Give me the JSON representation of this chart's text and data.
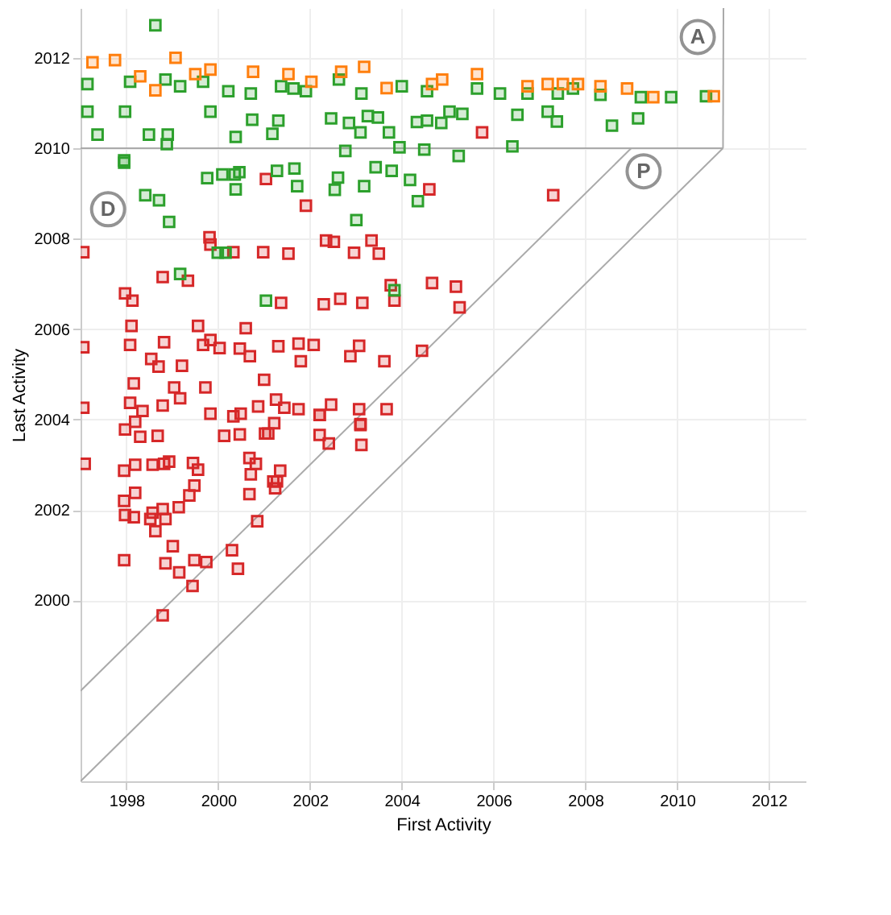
{
  "chart_data": {
    "type": "scatter",
    "xlabel": "First Activity",
    "ylabel": "Last Activity",
    "xlim": [
      1997,
      2012.8
    ],
    "ylim": [
      1996,
      2013.1
    ],
    "xticks": [
      1998,
      2000,
      2002,
      2004,
      2006,
      2008,
      2010,
      2012
    ],
    "yticks": [
      2000,
      2002,
      2004,
      2006,
      2008,
      2010,
      2012
    ],
    "grid": true,
    "marker": "square",
    "annotations": [
      {
        "text": "A",
        "x": 2010.45,
        "y": 2012.46
      },
      {
        "text": "P",
        "x": 2009.27,
        "y": 2009.49
      },
      {
        "text": "D",
        "x": 1997.6,
        "y": 2008.65
      }
    ],
    "series": [
      {
        "type": "line",
        "color": "#aaaaaa",
        "marker": "none",
        "line_style": "solid",
        "x": [
          1997,
          2009
        ],
        "values": [
          1998,
          2010
        ]
      },
      {
        "type": "line",
        "color": "#aaaaaa",
        "marker": "none",
        "line_style": "solid",
        "x": [
          1997,
          2011
        ],
        "values": [
          1996,
          2010
        ]
      },
      {
        "type": "line",
        "color": "#aaaaaa",
        "marker": "none",
        "line_style": "solid",
        "x": [
          1997,
          2011
        ],
        "values": [
          2010,
          2010
        ]
      },
      {
        "type": "line",
        "color": "#aaaaaa",
        "marker": "none",
        "line_style": "solid",
        "x": [
          2011,
          2011.01
        ],
        "values": [
          2010,
          2013.1
        ]
      },
      {
        "color": "#d62728",
        "x": [
          1997.06,
          1999.83,
          2000.33,
          2000.98,
          2001.53,
          2002.35,
          2002.52,
          2002.96,
          2003.34,
          2003.5,
          2004.6,
          2001.91,
          2001.04,
          1998.79,
          1999.34,
          1997.97,
          1998.13,
          1998.11,
          1998.08,
          1997.06,
          1998.82,
          1999.56,
          1999.67,
          1999.83,
          2000.03,
          2000.47,
          2000.6,
          2000.69,
          2001.31,
          2001.75,
          2002.08,
          2001.37,
          2002.3,
          2002.66,
          2003.14,
          2003.76,
          2003.84,
          2004.66,
          2005.18,
          2005.26,
          2004.44,
          2003.07,
          2002.88,
          2003.62,
          2001.8,
          1998.54,
          1998.7,
          1999.21,
          1998.16,
          1999.04,
          1999.17,
          1999.72,
          2001.0,
          1997.06,
          1998.08,
          1998.79,
          1998.35,
          1999.83,
          2000.33,
          2000.49,
          2000.87,
          2001.26,
          2001.44,
          2001.75,
          2002.21,
          2002.46,
          2003.07,
          2003.1,
          2003.67,
          2001.22,
          2001.02,
          1997.97,
          1998.3,
          1998.68,
          1998.19,
          1997.09,
          1997.95,
          1998.19,
          1998.57,
          1998.82,
          1998.93,
          1999.45,
          1999.56,
          1999.48,
          1999.37,
          1998.19,
          1997.95,
          1997.97,
          1998.16,
          1998.57,
          1998.52,
          1998.79,
          1998.85,
          1999.14,
          1998.63,
          1999.01,
          1997.95,
          1998.85,
          1999.15,
          1999.48,
          1999.74,
          1999.44,
          1998.79,
          2000.3,
          2000.43,
          2000.85,
          2000.13,
          2000.47,
          2001.09,
          2000.68,
          2000.82,
          2000.71,
          2001.35,
          2001.2,
          2001.28,
          2001.24,
          2000.68,
          2002.21,
          2002.41,
          2003.1,
          2003.12,
          2002.21,
          2007.3,
          2005.75,
          1999.81
        ],
        "values": [
          2007.7,
          2007.87,
          2007.7,
          2007.7,
          2007.67,
          2007.96,
          2007.93,
          2007.69,
          2007.96,
          2007.67,
          2009.09,
          2008.73,
          2009.32,
          2007.15,
          2007.07,
          2006.79,
          2006.63,
          2006.07,
          2005.65,
          2005.6,
          2005.71,
          2006.07,
          2005.65,
          2005.76,
          2005.58,
          2005.57,
          2006.02,
          2005.4,
          2005.62,
          2005.68,
          2005.65,
          2006.58,
          2006.55,
          2006.67,
          2006.58,
          2006.97,
          2006.63,
          2007.02,
          2006.94,
          2006.48,
          2005.52,
          2005.63,
          2005.4,
          2005.29,
          2005.29,
          2005.34,
          2005.17,
          2005.19,
          2004.8,
          2004.71,
          2004.47,
          2004.71,
          2004.88,
          2004.26,
          2004.37,
          2004.31,
          2004.19,
          2004.13,
          2004.07,
          2004.13,
          2004.29,
          2004.44,
          2004.26,
          2004.23,
          2004.1,
          2004.33,
          2004.23,
          2003.9,
          2004.23,
          2003.92,
          2003.69,
          2003.78,
          2003.62,
          2003.64,
          2003.95,
          2003.02,
          2002.87,
          2003.0,
          2003.0,
          2003.02,
          2003.07,
          2003.04,
          2002.89,
          2002.54,
          2002.32,
          2002.38,
          2002.2,
          2001.89,
          2001.84,
          2001.94,
          2001.8,
          2002.02,
          2001.8,
          2002.06,
          2001.53,
          2001.2,
          2000.89,
          2000.82,
          2000.62,
          2000.89,
          2000.85,
          2000.32,
          1999.67,
          2001.11,
          2000.7,
          2001.75,
          2003.64,
          2003.67,
          2003.69,
          2003.15,
          2003.02,
          2002.79,
          2002.87,
          2002.63,
          2002.63,
          2002.48,
          2002.35,
          2003.66,
          2003.47,
          2003.88,
          2003.44,
          2004.1,
          2008.96,
          2010.35,
          2008.03
        ]
      },
      {
        "color": "#2ca02c",
        "x": [
          1997.95,
          1999.76,
          2000.09,
          2000.36,
          2000.46,
          2000.38,
          2001.28,
          2001.66,
          2001.72,
          2002.61,
          2002.54,
          2003.18,
          2003.43,
          2003.78,
          2004.18,
          2004.35,
          1998.41,
          1998.71,
          1998.93,
          2003.01,
          1999.99,
          2000.16,
          1999.17,
          2001.04,
          2003.84,
          1997.37,
          1997.97,
          1998.49,
          1998.9,
          1998.88,
          1997.95,
          1999.83,
          2000.38,
          2000.74,
          2001.31,
          2001.18,
          2002.46,
          2002.85,
          2002.77,
          2003.1,
          2003.26,
          2003.48,
          2003.72,
          2003.95,
          2004.33,
          2004.49,
          2004.55,
          2004.86,
          2005.04,
          2005.32,
          2006.52,
          2007.18,
          2007.38,
          2008.58,
          2009.15,
          2006.41,
          2005.24,
          1997.15,
          1997.15,
          1998.63,
          1998.08,
          1998.85,
          1999.17,
          1999.67,
          2000.22,
          2000.71,
          2001.37,
          2001.64,
          2001.91,
          2002.63,
          2003.12,
          2004.0,
          2004.55,
          2005.64,
          2006.14,
          2006.74,
          2007.4,
          2007.73,
          2008.33,
          2009.21,
          2009.87,
          2010.63
        ],
        "values": [
          2009.68,
          2009.34,
          2009.42,
          2009.42,
          2009.47,
          2009.09,
          2009.5,
          2009.55,
          2009.16,
          2009.35,
          2009.08,
          2009.16,
          2009.58,
          2009.5,
          2009.3,
          2008.83,
          2008.96,
          2008.85,
          2008.37,
          2008.41,
          2007.69,
          2007.69,
          2007.22,
          2006.63,
          2006.86,
          2010.3,
          2010.81,
          2010.3,
          2010.3,
          2010.09,
          2009.73,
          2010.81,
          2010.25,
          2010.63,
          2010.61,
          2010.32,
          2010.66,
          2010.56,
          2009.94,
          2010.35,
          2010.71,
          2010.68,
          2010.35,
          2010.02,
          2010.58,
          2009.97,
          2010.61,
          2010.56,
          2010.81,
          2010.76,
          2010.74,
          2010.81,
          2010.59,
          2010.5,
          2010.66,
          2010.04,
          2009.83,
          2011.42,
          2010.81,
          2012.72,
          2011.47,
          2011.52,
          2011.37,
          2011.47,
          2011.26,
          2011.21,
          2011.37,
          2011.32,
          2011.26,
          2011.52,
          2011.21,
          2011.37,
          2011.26,
          2011.32,
          2011.21,
          2011.21,
          2011.21,
          2011.32,
          2011.18,
          2011.13,
          2011.13,
          2011.15
        ]
      },
      {
        "color": "#ff7f0e",
        "x": [
          1997.26,
          1997.75,
          1998.3,
          1998.63,
          1999.07,
          1999.5,
          1999.83,
          2000.76,
          2001.53,
          2002.03,
          2002.68,
          2003.18,
          2003.67,
          2004.66,
          2004.88,
          2005.64,
          2006.74,
          2007.18,
          2007.51,
          2007.84,
          2008.33,
          2008.91,
          2009.48,
          2010.8
        ],
        "values": [
          2011.9,
          2011.95,
          2011.59,
          2011.28,
          2012.0,
          2011.64,
          2011.74,
          2011.69,
          2011.64,
          2011.47,
          2011.69,
          2011.8,
          2011.33,
          2011.42,
          2011.52,
          2011.64,
          2011.37,
          2011.42,
          2011.42,
          2011.42,
          2011.37,
          2011.32,
          2011.13,
          2011.15
        ]
      }
    ]
  }
}
